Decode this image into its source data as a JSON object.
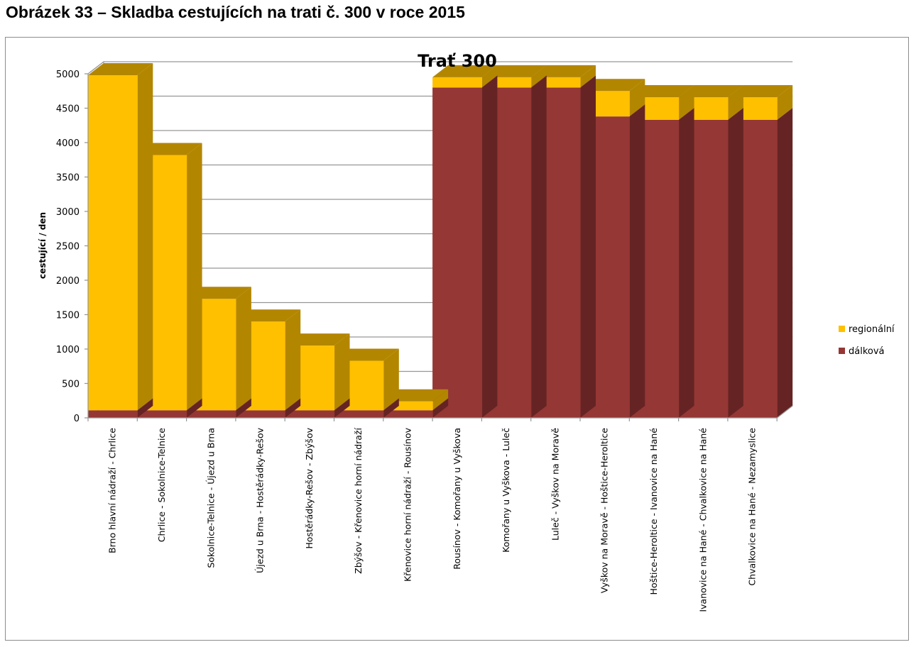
{
  "caption": "Obrázek 33 – Skladba cestujících na trati č. 300 v roce 2015",
  "colors": {
    "regionalni": "#FFC000",
    "regionalni_dark": "#B38600",
    "dalkova": "#953735",
    "dalkova_dark": "#652423",
    "grid": "#969696"
  },
  "chart_data": {
    "type": "bar",
    "stacked": true,
    "three_d": true,
    "title": "Trať 300",
    "xlabel": "",
    "ylabel": "cestující / den",
    "ylim": [
      0,
      5000
    ],
    "yticks": [
      0,
      500,
      1000,
      1500,
      2000,
      2500,
      3000,
      3500,
      4000,
      4500,
      5000
    ],
    "grid": true,
    "legend_position": "right",
    "categories": [
      "Brno hlavní nádraží - Chrlice",
      "Chrlice - Sokolnice-Telnice",
      "Sokolnice-Telnice - Újezd u Brna",
      "Újezd u Brna - Hostěrádky-Rešov",
      "Hostěrádky-Rešov - Zbýšov",
      "Zbýšov - Křenovice horní nádraží",
      "Křenovice horní nádraží - Rousínov",
      "Rousínov - Komořany u Vyškova",
      "Komořany u Vyškova - Luleč",
      "Luleč - Vyškov na Moravě",
      "Vyškov na Moravě - Hoštice-Heroltice",
      "Hoštice-Heroltice - Ivanovice na Hané",
      "Ivanovice na Hané - Chvalkovice na Hané",
      "Chvalkovice na Hané - Nezamyslice"
    ],
    "series": [
      {
        "name": "dálková",
        "values": [
          110,
          110,
          110,
          110,
          110,
          110,
          110,
          4800,
          4800,
          4800,
          4380,
          4330,
          4330,
          4330
        ]
      },
      {
        "name": "regionální",
        "values": [
          4870,
          3710,
          1620,
          1290,
          940,
          720,
          130,
          150,
          150,
          150,
          370,
          330,
          330,
          330
        ]
      }
    ]
  }
}
